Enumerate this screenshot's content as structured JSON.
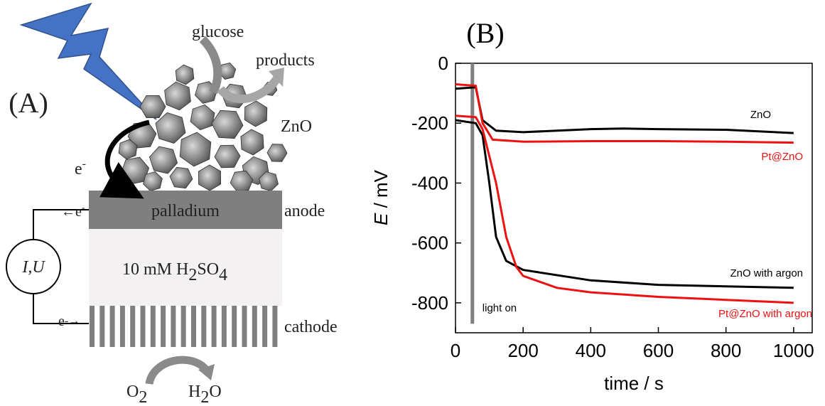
{
  "panel_a": {
    "label": "(A)",
    "glucose": "glucose",
    "products": "products",
    "zno": "ZnO",
    "electron": [
      "e",
      "-"
    ],
    "palladium": "palladium",
    "anode": "anode",
    "electrolyte": [
      "10 mM H",
      "2",
      "SO",
      "4"
    ],
    "cathode": "cathode",
    "meter": "I,U",
    "wire_top": [
      "←e",
      "-"
    ],
    "wire_bottom": [
      "e",
      "-→"
    ],
    "oxygen": [
      "O",
      "2"
    ],
    "water": [
      "H",
      "2",
      "O"
    ]
  },
  "chart_data": {
    "type": "line",
    "panel_label": "(B)",
    "xlabel": "time / s",
    "ylabel": {
      "symbol": "E",
      "unit": " / mV"
    },
    "xlim": [
      0,
      1055
    ],
    "ylim": [
      -900,
      0
    ],
    "xticks": [
      0,
      200,
      400,
      600,
      800,
      1000
    ],
    "yticks": [
      0,
      -200,
      -400,
      -600,
      -800
    ],
    "annotation": {
      "text": "light on",
      "x": 50,
      "y": [
        0,
        -870
      ],
      "color": "#808080"
    },
    "series": [
      {
        "name": "ZnO",
        "color": "#000000",
        "x": [
          0,
          60,
          80,
          120,
          200,
          400,
          500,
          600,
          800,
          1000
        ],
        "values": [
          -85,
          -80,
          -190,
          -225,
          -230,
          -220,
          -218,
          -220,
          -222,
          -233
        ]
      },
      {
        "name": "Pt@ZnO",
        "color": "#ee1111",
        "x": [
          0,
          60,
          80,
          110,
          200,
          400,
          600,
          800,
          1000
        ],
        "values": [
          -70,
          -75,
          -200,
          -255,
          -262,
          -260,
          -260,
          -262,
          -265
        ]
      },
      {
        "name": "ZnO with argon",
        "color": "#000000",
        "x": [
          0,
          60,
          80,
          100,
          120,
          150,
          200,
          400,
          600,
          800,
          1000
        ],
        "values": [
          -190,
          -200,
          -240,
          -400,
          -580,
          -660,
          -690,
          -725,
          -740,
          -745,
          -750
        ]
      },
      {
        "name": "Pt@ZnO with argon",
        "color": "#ee1111",
        "x": [
          0,
          60,
          80,
          120,
          150,
          180,
          200,
          300,
          400,
          600,
          800,
          1000
        ],
        "values": [
          -175,
          -180,
          -220,
          -400,
          -580,
          -680,
          -710,
          -750,
          -765,
          -780,
          -790,
          -800
        ]
      }
    ]
  }
}
